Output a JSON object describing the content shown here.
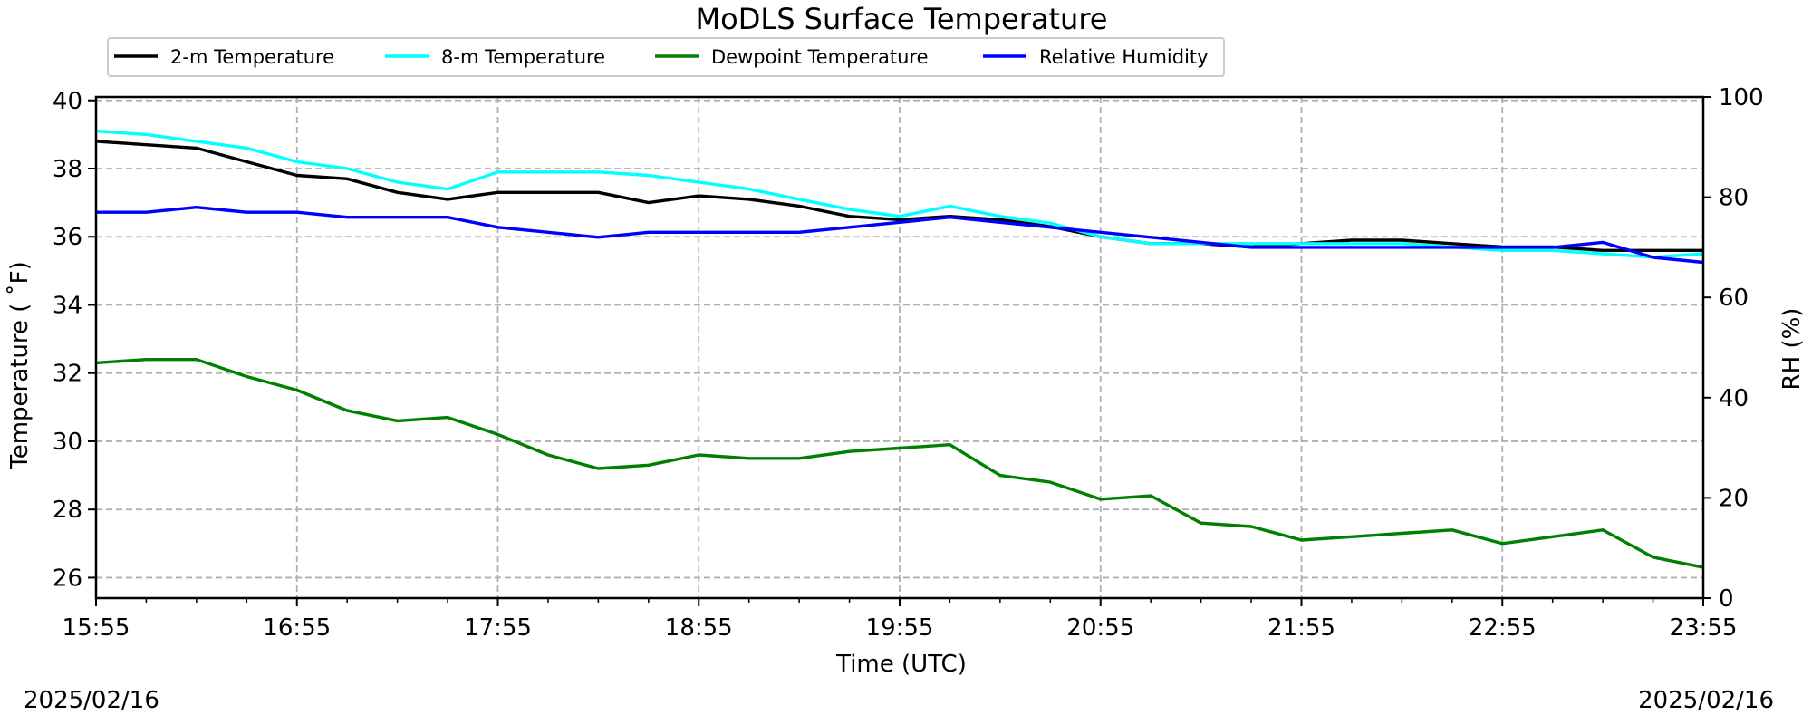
{
  "chart_data": {
    "type": "line",
    "title": "MoDLS Surface Temperature",
    "xlabel": "Time (UTC)",
    "ylabel": "Temperature ($^\\circ$F)",
    "ylabel_display": "Temperature ( ˚F)",
    "ylabel_right": "RH (%)",
    "x_ticks": [
      "15:55",
      "16:55",
      "17:55",
      "18:55",
      "19:55",
      "20:55",
      "21:55",
      "22:55",
      "23:55"
    ],
    "ylim": [
      25.4,
      40.1
    ],
    "y_ticks": [
      26,
      28,
      30,
      32,
      34,
      36,
      38,
      40
    ],
    "ylim_right": [
      0,
      100
    ],
    "y_ticks_right": [
      0,
      20,
      40,
      60,
      80,
      100
    ],
    "grid": true,
    "legend_position": "top-left, above plot",
    "date_start": "2025/02/16",
    "date_end": "2025/02/16",
    "series": [
      {
        "name": "2-m Temperature",
        "color": "#000000",
        "axis": "left",
        "x": [
          "15:55",
          "16:10",
          "16:25",
          "16:40",
          "16:55",
          "17:10",
          "17:25",
          "17:40",
          "17:55",
          "18:10",
          "18:25",
          "18:40",
          "18:55",
          "19:10",
          "19:25",
          "19:40",
          "19:55",
          "20:10",
          "20:25",
          "20:40",
          "20:55",
          "21:10",
          "21:25",
          "21:40",
          "21:55",
          "22:10",
          "22:25",
          "22:40",
          "22:55",
          "23:10",
          "23:25",
          "23:40",
          "23:55"
        ],
        "values": [
          38.8,
          38.7,
          38.6,
          38.2,
          37.8,
          37.7,
          37.3,
          37.1,
          37.3,
          37.3,
          37.3,
          37.0,
          37.2,
          37.1,
          36.9,
          36.6,
          36.5,
          36.6,
          36.5,
          36.3,
          36.0,
          35.8,
          35.8,
          35.7,
          35.8,
          35.9,
          35.9,
          35.8,
          35.7,
          35.7,
          35.6,
          35.6,
          35.6
        ]
      },
      {
        "name": "8-m Temperature",
        "color": "#00ffff",
        "axis": "left",
        "x": [
          "15:55",
          "16:10",
          "16:25",
          "16:40",
          "16:55",
          "17:10",
          "17:25",
          "17:40",
          "17:55",
          "18:10",
          "18:25",
          "18:40",
          "18:55",
          "19:10",
          "19:25",
          "19:40",
          "19:55",
          "20:10",
          "20:25",
          "20:40",
          "20:55",
          "21:10",
          "21:25",
          "21:40",
          "21:55",
          "22:10",
          "22:25",
          "22:40",
          "22:55",
          "23:10",
          "23:25",
          "23:40",
          "23:55"
        ],
        "values": [
          39.1,
          39.0,
          38.8,
          38.6,
          38.2,
          38.0,
          37.6,
          37.4,
          37.9,
          37.9,
          37.9,
          37.8,
          37.6,
          37.4,
          37.1,
          36.8,
          36.6,
          36.9,
          36.6,
          36.4,
          36.0,
          35.8,
          35.8,
          35.8,
          35.8,
          35.8,
          35.8,
          35.7,
          35.6,
          35.6,
          35.5,
          35.4,
          35.5
        ]
      },
      {
        "name": "Dewpoint Temperature",
        "color": "#008000",
        "axis": "left",
        "x": [
          "15:55",
          "16:10",
          "16:25",
          "16:40",
          "16:55",
          "17:10",
          "17:25",
          "17:40",
          "17:55",
          "18:10",
          "18:25",
          "18:40",
          "18:55",
          "19:10",
          "19:25",
          "19:40",
          "19:55",
          "20:10",
          "20:25",
          "20:40",
          "20:55",
          "21:10",
          "21:25",
          "21:40",
          "21:55",
          "22:10",
          "22:25",
          "22:40",
          "22:55",
          "23:10",
          "23:25",
          "23:40",
          "23:55"
        ],
        "values": [
          32.3,
          32.4,
          32.4,
          31.9,
          31.5,
          30.9,
          30.6,
          30.7,
          30.2,
          29.6,
          29.2,
          29.3,
          29.6,
          29.5,
          29.5,
          29.7,
          29.8,
          29.9,
          29.0,
          28.8,
          28.3,
          28.4,
          27.6,
          27.5,
          27.1,
          27.2,
          27.3,
          27.4,
          27.0,
          27.2,
          27.4,
          26.6,
          26.3
        ]
      },
      {
        "name": "Relative Humidity",
        "color": "#0000ff",
        "axis": "right",
        "x": [
          "15:55",
          "16:10",
          "16:25",
          "16:40",
          "16:55",
          "17:10",
          "17:25",
          "17:40",
          "17:55",
          "18:10",
          "18:25",
          "18:40",
          "18:55",
          "19:10",
          "19:25",
          "19:40",
          "19:55",
          "20:10",
          "20:25",
          "20:40",
          "20:55",
          "21:10",
          "21:25",
          "21:40",
          "21:55",
          "22:10",
          "22:25",
          "22:40",
          "22:55",
          "23:10",
          "23:25",
          "23:40",
          "23:55"
        ],
        "values": [
          77,
          77,
          78,
          77,
          77,
          76,
          76,
          76,
          74,
          73,
          72,
          73,
          73,
          73,
          73,
          74,
          75,
          76,
          75,
          74,
          73,
          72,
          71,
          70,
          70,
          70,
          70,
          70,
          70,
          70,
          71,
          68,
          67
        ]
      }
    ]
  }
}
